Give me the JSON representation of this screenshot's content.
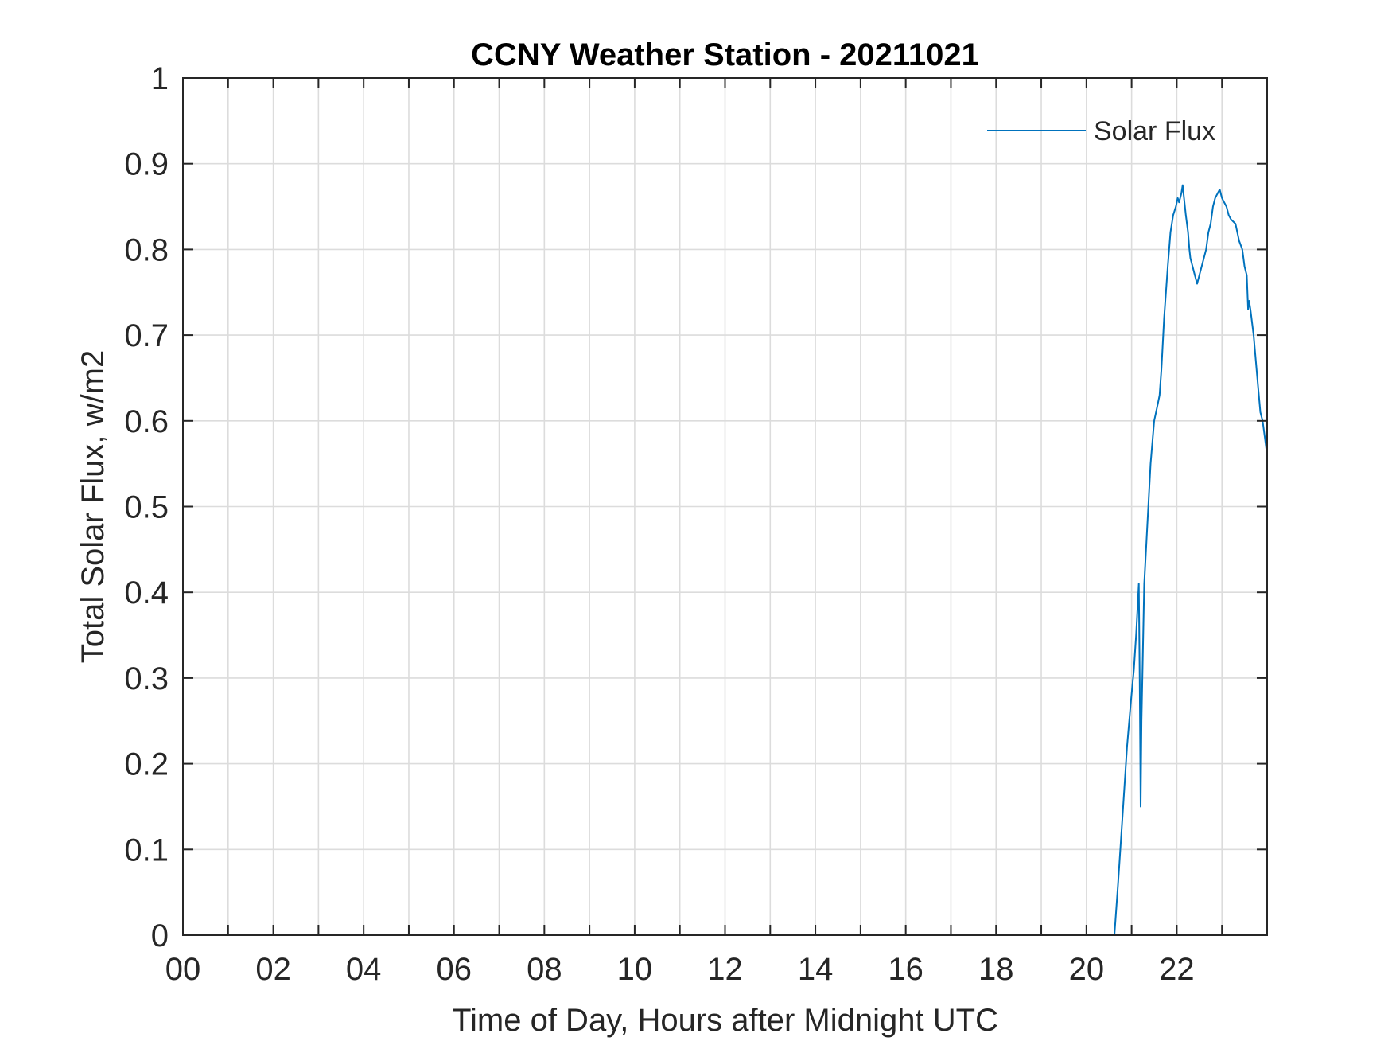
{
  "chart_data": {
    "type": "line",
    "title": "CCNY Weather Station - 20211021",
    "xlabel": "Time of Day, Hours after Midnight UTC",
    "ylabel": "Total Solar Flux, w/m2",
    "xlim": [
      0,
      24
    ],
    "ylim": [
      0,
      1
    ],
    "grid": true,
    "legend_position": "top-right",
    "x_ticks": [
      0,
      1,
      2,
      3,
      4,
      5,
      6,
      7,
      8,
      9,
      10,
      11,
      12,
      13,
      14,
      15,
      16,
      17,
      18,
      19,
      20,
      21,
      22,
      23
    ],
    "x_tick_labels": [
      {
        "value": 0,
        "label": "00"
      },
      {
        "value": 2,
        "label": "02"
      },
      {
        "value": 4,
        "label": "04"
      },
      {
        "value": 6,
        "label": "06"
      },
      {
        "value": 8,
        "label": "08"
      },
      {
        "value": 10,
        "label": "10"
      },
      {
        "value": 12,
        "label": "12"
      },
      {
        "value": 14,
        "label": "14"
      },
      {
        "value": 16,
        "label": "16"
      },
      {
        "value": 18,
        "label": "18"
      },
      {
        "value": 20,
        "label": "20"
      },
      {
        "value": 22,
        "label": "22"
      }
    ],
    "y_ticks": [
      {
        "value": 0,
        "label": "0"
      },
      {
        "value": 0.1,
        "label": "0.1"
      },
      {
        "value": 0.2,
        "label": "0.2"
      },
      {
        "value": 0.3,
        "label": "0.3"
      },
      {
        "value": 0.4,
        "label": "0.4"
      },
      {
        "value": 0.5,
        "label": "0.5"
      },
      {
        "value": 0.6,
        "label": "0.6"
      },
      {
        "value": 0.7,
        "label": "0.7"
      },
      {
        "value": 0.8,
        "label": "0.8"
      },
      {
        "value": 0.9,
        "label": "0.9"
      },
      {
        "value": 1,
        "label": "1"
      }
    ],
    "series": [
      {
        "name": "Solar Flux",
        "color": "#0072BD",
        "x": [
          19.75,
          20.62,
          20.7,
          20.8,
          20.9,
          20.98,
          21.05,
          21.1,
          21.13,
          21.16,
          21.18,
          21.2,
          21.22,
          21.25,
          21.28,
          21.35,
          21.42,
          21.5,
          21.58,
          21.62,
          21.66,
          21.72,
          21.8,
          21.86,
          21.92,
          21.98,
          22.02,
          22.05,
          22.1,
          22.13,
          22.2,
          22.25,
          22.28,
          22.3,
          22.35,
          22.4,
          22.45,
          22.5,
          22.55,
          22.6,
          22.65,
          22.7,
          22.75,
          22.8,
          22.85,
          22.9,
          22.95,
          23.0,
          23.05,
          23.1,
          23.15,
          23.2,
          23.3,
          23.38,
          23.45,
          23.5,
          23.55,
          23.58,
          23.6,
          23.63,
          23.7,
          23.75,
          23.8,
          23.85,
          23.9,
          23.95,
          24.0
        ],
        "y": [
          0.0,
          0.0,
          0.06,
          0.14,
          0.22,
          0.27,
          0.31,
          0.35,
          0.38,
          0.41,
          0.3,
          0.15,
          0.25,
          0.33,
          0.41,
          0.48,
          0.55,
          0.6,
          0.62,
          0.63,
          0.66,
          0.72,
          0.78,
          0.82,
          0.84,
          0.85,
          0.86,
          0.855,
          0.865,
          0.875,
          0.84,
          0.82,
          0.8,
          0.79,
          0.78,
          0.77,
          0.76,
          0.77,
          0.78,
          0.79,
          0.8,
          0.82,
          0.83,
          0.85,
          0.86,
          0.865,
          0.87,
          0.86,
          0.855,
          0.85,
          0.84,
          0.835,
          0.83,
          0.81,
          0.8,
          0.78,
          0.77,
          0.73,
          0.74,
          0.73,
          0.7,
          0.67,
          0.64,
          0.61,
          0.6,
          0.58,
          0.56
        ]
      }
    ]
  }
}
